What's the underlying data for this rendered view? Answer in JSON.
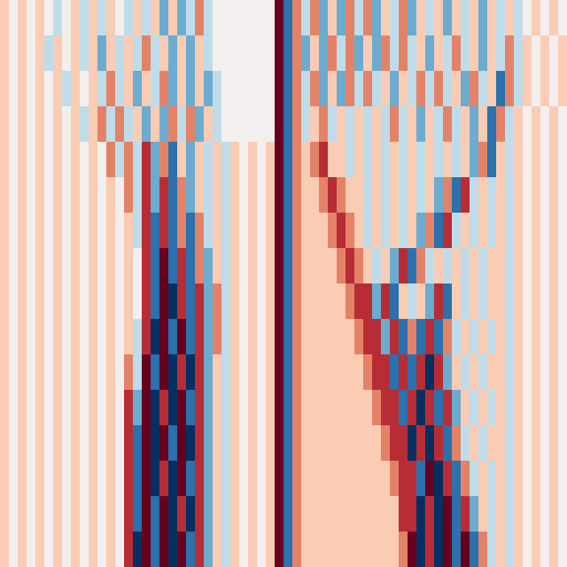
{
  "chart_data": {
    "type": "heatmap",
    "tick_labels": false,
    "zlim": [
      -4,
      4
    ],
    "cells": [
      [
        1,
        0,
        1,
        0,
        1,
        0,
        -1,
        0,
        1,
        -1,
        1,
        -1,
        1,
        0,
        -1,
        1,
        -1,
        1,
        -2,
        1,
        -2,
        -1,
        2,
        -1,
        0,
        0,
        0,
        0,
        0,
        0,
        0,
        4,
        -3,
        2,
        -1,
        2,
        -2,
        1,
        -2,
        2,
        -1,
        2,
        -2,
        1,
        -1,
        2,
        -2,
        1,
        -1,
        1,
        -2,
        1,
        -1,
        1,
        -2,
        1,
        -1,
        1,
        -1,
        0,
        1,
        0,
        1,
        0
      ],
      [
        1,
        0,
        1,
        0,
        1,
        -1,
        1,
        0,
        1,
        -1,
        1,
        -2,
        1,
        -1,
        1,
        -1,
        2,
        -1,
        1,
        -2,
        1,
        -2,
        1,
        -1,
        0,
        0,
        0,
        0,
        0,
        0,
        0,
        4,
        -3,
        2,
        -2,
        1,
        -2,
        2,
        -1,
        2,
        -2,
        1,
        -2,
        2,
        -1,
        2,
        -1,
        1,
        -2,
        1,
        -1,
        2,
        -1,
        1,
        -2,
        1,
        -1,
        2,
        -1,
        1,
        0,
        1,
        0,
        1
      ],
      [
        1,
        0,
        1,
        0,
        1,
        0,
        1,
        -1,
        1,
        0,
        1,
        -1,
        2,
        -1,
        1,
        -2,
        1,
        -1,
        2,
        -2,
        1,
        -2,
        1,
        -2,
        -1,
        0,
        0,
        0,
        0,
        0,
        0,
        4,
        -3,
        2,
        -1,
        2,
        -2,
        1,
        -2,
        2,
        -1,
        2,
        -1,
        1,
        -2,
        1,
        -1,
        2,
        -1,
        2,
        -1,
        1,
        -2,
        2,
        -1,
        1,
        -3,
        2,
        -1,
        1,
        0,
        1,
        0,
        1
      ],
      [
        1,
        0,
        1,
        0,
        1,
        0,
        1,
        0,
        1,
        -1,
        1,
        2,
        -1,
        2,
        -1,
        1,
        -2,
        1,
        -2,
        2,
        -1,
        2,
        -2,
        1,
        -1,
        0,
        0,
        0,
        0,
        0,
        0,
        4,
        -3,
        2,
        -1,
        1,
        2,
        -1,
        1,
        -1,
        1,
        -1,
        1,
        -1,
        2,
        -1,
        1,
        -2,
        1,
        -1,
        2,
        -1,
        1,
        -2,
        1,
        -3,
        2,
        -1,
        1,
        0,
        1,
        0,
        1,
        0
      ],
      [
        1,
        0,
        1,
        0,
        1,
        0,
        1,
        0,
        1,
        0,
        1,
        0,
        2,
        -1,
        2,
        -1,
        3,
        -2,
        2,
        -3,
        1,
        -2,
        1,
        -1,
        1,
        -1,
        1,
        0,
        1,
        0,
        1,
        4,
        -3,
        2,
        1,
        2,
        3,
        1,
        1,
        -1,
        1,
        -1,
        1,
        -1,
        1,
        -1,
        1,
        -1,
        1,
        -1,
        1,
        -1,
        1,
        -2,
        2,
        -3,
        1,
        -1,
        1,
        0,
        1,
        0,
        1,
        0
      ],
      [
        1,
        0,
        1,
        0,
        1,
        0,
        1,
        0,
        1,
        0,
        1,
        0,
        1,
        0,
        2,
        -1,
        3,
        -2,
        3,
        -3,
        2,
        -2,
        1,
        -1,
        1,
        -1,
        1,
        0,
        1,
        0,
        1,
        4,
        -3,
        2,
        1,
        1,
        2,
        3,
        2,
        1,
        1,
        -1,
        1,
        -1,
        1,
        -1,
        1,
        -1,
        1,
        -2,
        2,
        -3,
        3,
        -1,
        1,
        -1,
        1,
        -1,
        1,
        0,
        1,
        0,
        1,
        0
      ],
      [
        1,
        0,
        1,
        0,
        1,
        0,
        1,
        0,
        1,
        0,
        1,
        0,
        1,
        0,
        1,
        -1,
        3,
        -3,
        3,
        -3,
        2,
        -3,
        2,
        -1,
        1,
        -1,
        1,
        0,
        1,
        0,
        1,
        4,
        -3,
        2,
        1,
        1,
        1,
        2,
        3,
        2,
        1,
        -1,
        1,
        -1,
        1,
        -1,
        1,
        -2,
        2,
        -3,
        3,
        -1,
        1,
        -1,
        1,
        -1,
        1,
        -1,
        1,
        0,
        1,
        0,
        1,
        0
      ],
      [
        1,
        0,
        1,
        0,
        1,
        0,
        1,
        0,
        1,
        0,
        1,
        0,
        1,
        0,
        1,
        0,
        3,
        -3,
        4,
        -3,
        3,
        -3,
        2,
        -2,
        1,
        -1,
        1,
        0,
        1,
        0,
        1,
        4,
        -3,
        2,
        1,
        1,
        1,
        1,
        2,
        3,
        2,
        1,
        -1,
        1,
        -2,
        3,
        -3,
        2,
        -1,
        1,
        -1,
        1,
        -1,
        1,
        -1,
        1,
        1,
        -1,
        1,
        0,
        1,
        0,
        1,
        0
      ],
      [
        1,
        0,
        1,
        0,
        1,
        0,
        1,
        0,
        1,
        0,
        1,
        0,
        1,
        0,
        1,
        0,
        3,
        -3,
        4,
        -4,
        3,
        -3,
        3,
        -2,
        2,
        -1,
        1,
        0,
        1,
        0,
        1,
        4,
        -3,
        2,
        1,
        1,
        1,
        1,
        1,
        2,
        3,
        3,
        -2,
        3,
        -3,
        1,
        -1,
        1,
        -2,
        3,
        -3,
        1,
        -1,
        1,
        -1,
        1,
        1,
        -1,
        1,
        0,
        1,
        0,
        1,
        0
      ],
      [
        1,
        0,
        1,
        0,
        1,
        0,
        1,
        0,
        1,
        0,
        1,
        0,
        1,
        0,
        1,
        -1,
        3,
        -4,
        4,
        -3,
        4,
        -3,
        3,
        -2,
        2,
        -1,
        1,
        0,
        1,
        0,
        1,
        4,
        -3,
        2,
        1,
        1,
        1,
        1,
        1,
        1,
        2,
        3,
        3,
        -2,
        3,
        -3,
        2,
        -3,
        3,
        -3,
        2,
        -1,
        1,
        -1,
        1,
        -1,
        1,
        -1,
        1,
        0,
        1,
        0,
        1,
        0
      ],
      [
        1,
        0,
        1,
        0,
        1,
        0,
        1,
        0,
        1,
        0,
        1,
        0,
        1,
        0,
        2,
        -1,
        4,
        -3,
        4,
        -4,
        3,
        -4,
        3,
        -2,
        1,
        -1,
        1,
        0,
        1,
        0,
        1,
        4,
        -3,
        2,
        1,
        1,
        1,
        1,
        1,
        1,
        1,
        2,
        3,
        3,
        -3,
        3,
        -3,
        3,
        -4,
        3,
        -2,
        1,
        -1,
        1,
        -1,
        1,
        1,
        -1,
        1,
        0,
        1,
        0,
        1,
        0
      ],
      [
        1,
        0,
        1,
        0,
        1,
        0,
        1,
        0,
        1,
        0,
        1,
        0,
        1,
        0,
        3,
        -2,
        4,
        -4,
        3,
        -4,
        4,
        -3,
        3,
        -2,
        1,
        -1,
        1,
        0,
        1,
        0,
        1,
        4,
        -3,
        2,
        1,
        1,
        1,
        1,
        1,
        1,
        1,
        1,
        2,
        3,
        3,
        -3,
        3,
        -4,
        3,
        -3,
        3,
        -2,
        1,
        -1,
        1,
        -1,
        1,
        -1,
        1,
        0,
        1,
        0,
        1,
        0
      ],
      [
        1,
        0,
        1,
        0,
        1,
        0,
        1,
        0,
        1,
        0,
        1,
        0,
        1,
        0,
        3,
        -3,
        4,
        -4,
        4,
        -3,
        4,
        -4,
        3,
        -2,
        1,
        -1,
        1,
        0,
        1,
        0,
        1,
        4,
        -3,
        2,
        1,
        1,
        1,
        1,
        1,
        1,
        1,
        1,
        1,
        2,
        3,
        3,
        -4,
        3,
        -4,
        3,
        -3,
        2,
        -1,
        1,
        -1,
        1,
        1,
        -1,
        1,
        0,
        1,
        0,
        1,
        0
      ],
      [
        1,
        0,
        1,
        0,
        1,
        0,
        1,
        0,
        1,
        0,
        1,
        0,
        1,
        0,
        3,
        -3,
        4,
        -4,
        3,
        -4,
        4,
        -3,
        3,
        -2,
        1,
        -1,
        1,
        0,
        1,
        0,
        1,
        4,
        -3,
        2,
        1,
        1,
        1,
        1,
        1,
        1,
        1,
        1,
        1,
        1,
        2,
        3,
        3,
        -3,
        4,
        -4,
        3,
        -3,
        2,
        -1,
        1,
        -1,
        1,
        -1,
        1,
        0,
        1,
        0,
        1,
        0
      ],
      [
        1,
        0,
        1,
        0,
        1,
        0,
        1,
        0,
        1,
        0,
        1,
        0,
        1,
        0,
        3,
        -3,
        4,
        -3,
        4,
        -4,
        3,
        -4,
        3,
        -2,
        1,
        -1,
        1,
        0,
        1,
        0,
        1,
        4,
        -3,
        2,
        1,
        1,
        1,
        1,
        1,
        1,
        1,
        1,
        1,
        1,
        1,
        3,
        3,
        -4,
        3,
        -4,
        4,
        -3,
        3,
        -2,
        1,
        -1,
        1,
        -1,
        1,
        0,
        1,
        0,
        1,
        0
      ],
      [
        1,
        0,
        1,
        0,
        1,
        0,
        1,
        0,
        1,
        0,
        1,
        0,
        1,
        0,
        3,
        -4,
        4,
        -3,
        4,
        -4,
        4,
        -3,
        3,
        -2,
        1,
        -1,
        1,
        0,
        1,
        0,
        1,
        4,
        -3,
        2,
        1,
        1,
        1,
        1,
        1,
        1,
        1,
        1,
        1,
        1,
        1,
        2,
        4,
        -4,
        3,
        -4,
        4,
        -3,
        4,
        -3,
        2,
        -1,
        1,
        -1,
        1,
        0,
        1,
        0,
        1,
        0
      ]
    ]
  }
}
